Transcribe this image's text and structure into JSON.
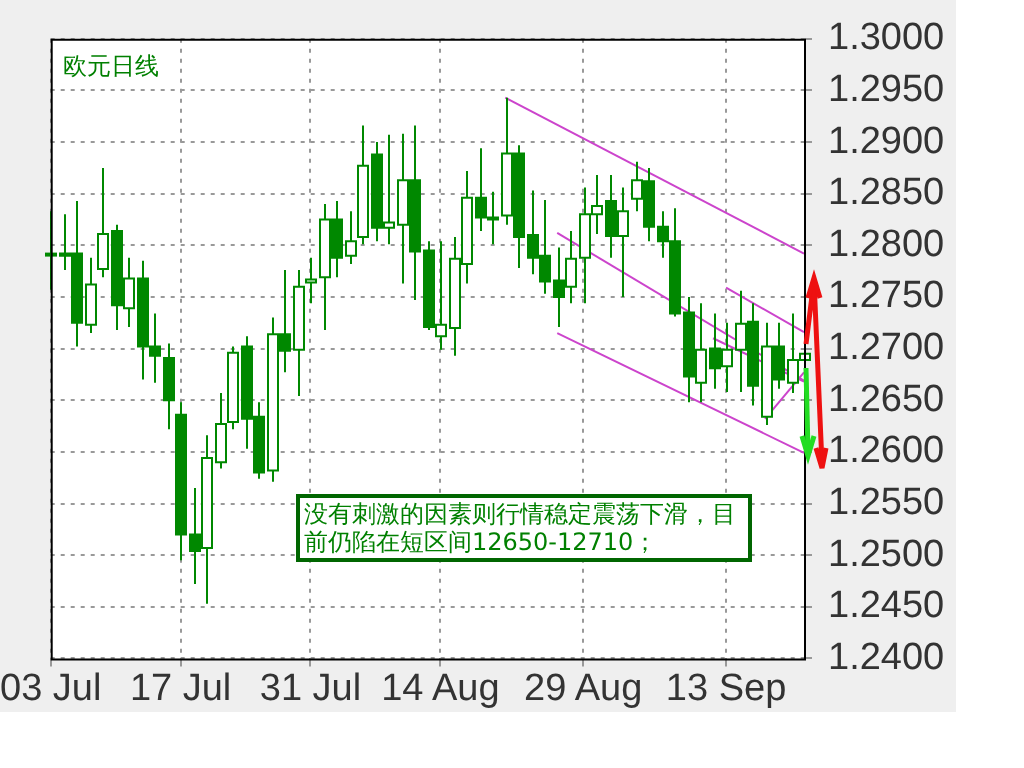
{
  "chart_data": {
    "type": "candlestick",
    "title": "欧元日线",
    "categories": [
      "03 Jul",
      null,
      null,
      null,
      null,
      null,
      null,
      null,
      null,
      null,
      "17 Jul",
      null,
      null,
      null,
      null,
      null,
      null,
      null,
      null,
      null,
      "31 Jul",
      null,
      null,
      null,
      null,
      null,
      null,
      null,
      null,
      null,
      "14 Aug",
      null,
      null,
      null,
      null,
      null,
      null,
      null,
      null,
      null,
      null,
      "29 Aug",
      null,
      null,
      null,
      null,
      null,
      null,
      null,
      null,
      null,
      null,
      "13 Sep",
      null,
      null,
      null,
      null,
      null,
      null
    ],
    "color": "#008800",
    "colors": [
      "#008800",
      "#008800",
      "#008800",
      "#ffffff",
      "#ffffff",
      "#008800",
      "#ffffff",
      "#008800",
      "#008800",
      "#008800",
      "#008800",
      "#008800",
      "#ffffff",
      "#ffffff",
      "#ffffff",
      "#008800",
      "#008800",
      "#ffffff",
      "#008800",
      "#ffffff",
      "#ffffff",
      "#ffffff",
      "#008800",
      "#ffffff",
      "#ffffff",
      "#008800",
      "#ffffff",
      "#ffffff",
      "#008800",
      "#008800",
      "#ffffff",
      "#ffffff",
      "#ffffff",
      "#008800",
      "#008800",
      "#ffffff",
      "#008800",
      "#008800",
      "#008800",
      "#008800",
      "#ffffff",
      "#ffffff",
      "#ffffff",
      "#008800",
      "#ffffff",
      "#ffffff",
      "#008800",
      "#008800",
      "#008800",
      "#008800",
      "#ffffff",
      "#008800",
      "#ffffff",
      "#ffffff",
      "#008800",
      "#ffffff",
      "#008800",
      "#ffffff",
      "#ffffff"
    ],
    "ohlc": [
      [
        1.2792,
        1.2833,
        1.2757,
        1.2792
      ],
      [
        1.2792,
        1.283,
        1.2776,
        1.279
      ],
      [
        1.2792,
        1.2843,
        1.2702,
        1.2725
      ],
      [
        1.2723,
        1.2788,
        1.2715,
        1.2762
      ],
      [
        1.2777,
        1.2875,
        1.2769,
        1.2811
      ],
      [
        1.2814,
        1.282,
        1.2718,
        1.2742
      ],
      [
        1.2739,
        1.2788,
        1.2721,
        1.2768
      ],
      [
        1.2768,
        1.2785,
        1.267,
        1.2702
      ],
      [
        1.2702,
        1.2734,
        1.2667,
        1.2693
      ],
      [
        1.2691,
        1.2705,
        1.2622,
        1.265
      ],
      [
        1.2636,
        1.2648,
        1.2495,
        1.252
      ],
      [
        1.252,
        1.2565,
        1.2472,
        1.2504
      ],
      [
        1.2507,
        1.2616,
        1.2453,
        1.2594
      ],
      [
        1.259,
        1.2657,
        1.2584,
        1.2627
      ],
      [
        1.2629,
        1.2702,
        1.2622,
        1.2696
      ],
      [
        1.2702,
        1.2712,
        1.2603,
        1.2632
      ],
      [
        1.2634,
        1.2648,
        1.2574,
        1.258
      ],
      [
        1.2582,
        1.273,
        1.2571,
        1.2714
      ],
      [
        1.2714,
        1.2776,
        1.2677,
        1.2698
      ],
      [
        1.2699,
        1.2776,
        1.2654,
        1.276
      ],
      [
        1.2764,
        1.2788,
        1.2744,
        1.2767
      ],
      [
        1.2769,
        1.284,
        1.2718,
        1.2825
      ],
      [
        1.2825,
        1.2843,
        1.2769,
        1.2788
      ],
      [
        1.279,
        1.2833,
        1.2782,
        1.2804
      ],
      [
        1.2808,
        1.2916,
        1.2801,
        1.2877
      ],
      [
        1.2888,
        1.29,
        1.2804,
        1.2817
      ],
      [
        1.2817,
        1.2907,
        1.2801,
        1.2822
      ],
      [
        1.282,
        1.2908,
        1.2763,
        1.2863
      ],
      [
        1.2863,
        1.2916,
        1.2747,
        1.2794
      ],
      [
        1.2795,
        1.2804,
        1.2718,
        1.2721
      ],
      [
        1.2712,
        1.2804,
        1.2699,
        1.2723
      ],
      [
        1.272,
        1.2808,
        1.2693,
        1.2787
      ],
      [
        1.2782,
        1.2872,
        1.2763,
        1.2846
      ],
      [
        1.2846,
        1.2894,
        1.2814,
        1.2827
      ],
      [
        1.2827,
        1.2852,
        1.2801,
        1.2825
      ],
      [
        1.2829,
        1.2943,
        1.282,
        1.2889
      ],
      [
        1.2889,
        1.2897,
        1.2778,
        1.2808
      ],
      [
        1.281,
        1.2853,
        1.2772,
        1.2788
      ],
      [
        1.279,
        1.2844,
        1.2753,
        1.2765
      ],
      [
        1.2766,
        1.2798,
        1.2721,
        1.275
      ],
      [
        1.276,
        1.2814,
        1.2744,
        1.2787
      ],
      [
        1.2788,
        1.2856,
        1.2744,
        1.283
      ],
      [
        1.283,
        1.2868,
        1.2811,
        1.2838
      ],
      [
        1.2843,
        1.2868,
        1.2788,
        1.2809
      ],
      [
        1.2809,
        1.2856,
        1.275,
        1.2833
      ],
      [
        1.2845,
        1.2881,
        1.2833,
        1.2863
      ],
      [
        1.2862,
        1.2875,
        1.2804,
        1.2818
      ],
      [
        1.2818,
        1.2833,
        1.2788,
        1.2804
      ],
      [
        1.2804,
        1.2836,
        1.2731,
        1.2734
      ],
      [
        1.2735,
        1.275,
        1.2648,
        1.2673
      ],
      [
        1.2667,
        1.2744,
        1.2648,
        1.2699
      ],
      [
        1.27,
        1.2734,
        1.2661,
        1.2681
      ],
      [
        1.2683,
        1.2725,
        1.2658,
        1.2699
      ],
      [
        1.2699,
        1.2756,
        1.2658,
        1.2724
      ],
      [
        1.2726,
        1.2744,
        1.2645,
        1.2664
      ],
      [
        1.2634,
        1.2725,
        1.2626,
        1.2702
      ],
      [
        1.2702,
        1.2725,
        1.2661,
        1.267
      ],
      [
        1.2667,
        1.2734,
        1.2657,
        1.2689
      ],
      [
        1.2689,
        1.2702,
        1.2683,
        1.2695
      ]
    ],
    "series": [
      {
        "type": "line",
        "color": "#cc44cc",
        "values": [
          null,
          null,
          null,
          null,
          null,
          null,
          null,
          null,
          null,
          null,
          null,
          null,
          null,
          null,
          null,
          null,
          null,
          null,
          null,
          null,
          null,
          null,
          null,
          null,
          null,
          null,
          null,
          null,
          null,
          null,
          null,
          null,
          null,
          null,
          null,
          1.2943,
          null,
          null,
          null,
          null,
          null,
          null,
          null,
          null,
          null,
          null,
          null,
          null,
          null,
          null,
          null,
          null,
          null,
          null,
          null,
          null,
          null,
          null,
          1.2792
        ]
      },
      {
        "type": "line",
        "color": "#cc44cc",
        "values": [
          null,
          null,
          null,
          null,
          null,
          null,
          null,
          null,
          null,
          null,
          null,
          null,
          null,
          null,
          null,
          null,
          null,
          null,
          null,
          null,
          null,
          null,
          null,
          null,
          null,
          null,
          null,
          null,
          null,
          null,
          null,
          null,
          null,
          null,
          null,
          null,
          null,
          null,
          null,
          1.2715,
          null,
          null,
          null,
          null,
          null,
          null,
          null,
          null,
          null,
          null,
          null,
          null,
          null,
          null,
          null,
          null,
          null,
          null,
          1.2599
        ]
      },
      {
        "type": "line",
        "color": "#cc44cc",
        "values": [
          null,
          null,
          null,
          null,
          null,
          null,
          null,
          null,
          null,
          null,
          null,
          null,
          null,
          null,
          null,
          null,
          null,
          null,
          null,
          null,
          null,
          null,
          null,
          null,
          null,
          null,
          null,
          null,
          null,
          null,
          null,
          null,
          null,
          null,
          null,
          null,
          null,
          null,
          null,
          1.2812,
          null,
          null,
          null,
          null,
          null,
          null,
          null,
          null,
          null,
          null,
          null,
          null,
          null,
          null,
          null,
          null,
          null,
          null,
          1.2669
        ]
      },
      {
        "type": "line",
        "color": "#cc44cc",
        "values": [
          null,
          null,
          null,
          null,
          null,
          null,
          null,
          null,
          null,
          null,
          null,
          null,
          null,
          null,
          null,
          null,
          null,
          null,
          null,
          null,
          null,
          null,
          null,
          null,
          null,
          null,
          null,
          null,
          null,
          null,
          null,
          null,
          null,
          null,
          null,
          null,
          null,
          null,
          null,
          null,
          null,
          null,
          null,
          null,
          null,
          null,
          null,
          null,
          null,
          null,
          null,
          null,
          1.2759,
          null,
          null,
          null,
          null,
          null,
          1.2716
        ]
      },
      {
        "type": "line",
        "color": "#cc44cc",
        "values": [
          null,
          null,
          null,
          null,
          null,
          null,
          null,
          null,
          null,
          null,
          null,
          null,
          null,
          null,
          null,
          null,
          null,
          null,
          null,
          null,
          null,
          null,
          null,
          null,
          null,
          null,
          null,
          null,
          null,
          null,
          null,
          null,
          null,
          null,
          null,
          null,
          null,
          null,
          null,
          null,
          null,
          null,
          null,
          null,
          null,
          null,
          null,
          null,
          null,
          null,
          null,
          1.271,
          null,
          null,
          null,
          null,
          null,
          null,
          1.2668
        ]
      },
      {
        "type": "line",
        "color": "#cc44cc",
        "values": [
          null,
          null,
          null,
          null,
          null,
          null,
          null,
          null,
          null,
          null,
          null,
          null,
          null,
          null,
          null,
          null,
          null,
          null,
          null,
          null,
          null,
          null,
          null,
          null,
          null,
          null,
          null,
          null,
          null,
          null,
          null,
          null,
          null,
          null,
          null,
          null,
          null,
          null,
          null,
          null,
          null,
          null,
          null,
          null,
          null,
          null,
          null,
          null,
          null,
          null,
          null,
          null,
          null,
          null,
          null,
          1.2632,
          null,
          null,
          1.2677
        ]
      }
    ],
    "ylim": [
      1.24,
      1.3
    ],
    "yticks": [
      {
        "value": 1.24,
        "label": "1.2400"
      },
      {
        "value": 1.245,
        "label": "1.2450"
      },
      {
        "value": 1.25,
        "label": "1.2500"
      },
      {
        "value": 1.255,
        "label": "1.2550"
      },
      {
        "value": 1.26,
        "label": "1.2600"
      },
      {
        "value": 1.265,
        "label": "1.2650"
      },
      {
        "value": 1.27,
        "label": "1.2700"
      },
      {
        "value": 1.275,
        "label": "1.2750"
      },
      {
        "value": 1.28,
        "label": "1.2800"
      },
      {
        "value": 1.285,
        "label": "1.2850"
      },
      {
        "value": 1.29,
        "label": "1.2900"
      },
      {
        "value": 1.295,
        "label": "1.2950"
      },
      {
        "value": 1.3,
        "label": "1.3000"
      }
    ],
    "grid": true,
    "legend": false,
    "annotations": [
      "没有刺激的因素则行情稳定震荡下滑，目前仍陷在短区间12650-12710；"
    ]
  }
}
